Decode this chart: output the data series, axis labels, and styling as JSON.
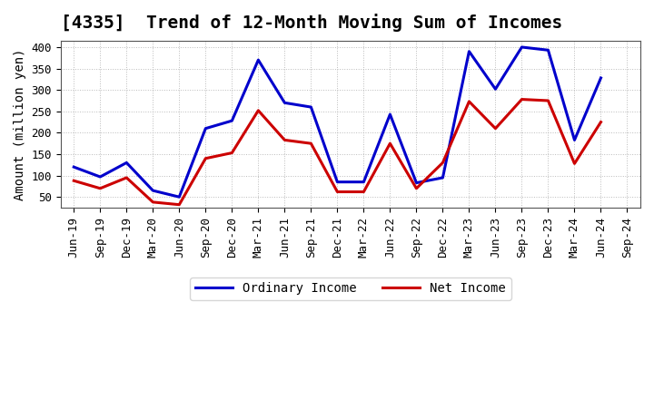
{
  "title": "[4335]  Trend of 12-Month Moving Sum of Incomes",
  "ylabel": "Amount (million yen)",
  "x_labels": [
    "Jun-19",
    "Sep-19",
    "Dec-19",
    "Mar-20",
    "Jun-20",
    "Sep-20",
    "Dec-20",
    "Mar-21",
    "Jun-21",
    "Sep-21",
    "Dec-21",
    "Mar-22",
    "Jun-22",
    "Sep-22",
    "Dec-22",
    "Mar-23",
    "Jun-23",
    "Sep-23",
    "Dec-23",
    "Mar-24",
    "Jun-24",
    "Sep-24"
  ],
  "ordinary_income": [
    120,
    97,
    130,
    65,
    50,
    210,
    228,
    370,
    270,
    260,
    85,
    85,
    243,
    83,
    95,
    390,
    302,
    400,
    393,
    183,
    328,
    null
  ],
  "net_income": [
    88,
    70,
    95,
    38,
    32,
    140,
    153,
    252,
    183,
    175,
    62,
    62,
    175,
    70,
    130,
    273,
    210,
    278,
    275,
    128,
    225,
    null
  ],
  "ordinary_income_color": "#0000CC",
  "net_income_color": "#CC0000",
  "ylim": [
    25,
    415
  ],
  "yticks": [
    50,
    100,
    150,
    200,
    250,
    300,
    350,
    400
  ],
  "background_color": "#ffffff",
  "grid_color": "#aaaaaa",
  "legend_labels": [
    "Ordinary Income",
    "Net Income"
  ],
  "title_fontsize": 14,
  "axis_fontsize": 10,
  "tick_fontsize": 9
}
